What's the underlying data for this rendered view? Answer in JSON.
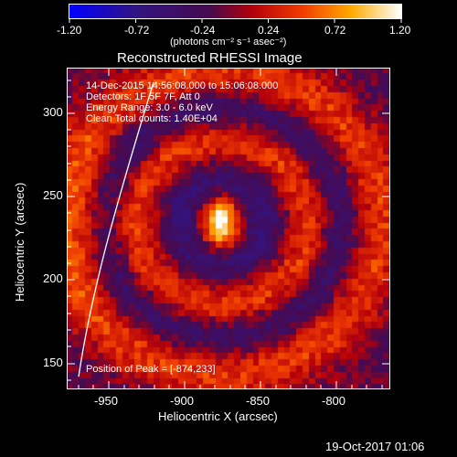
{
  "colorbar": {
    "ticks": [
      "-1.20",
      "-0.72",
      "-0.24",
      "0.24",
      "0.72",
      "1.20"
    ],
    "units_label": "(photons cm⁻² s⁻¹ asec⁻²)",
    "colors": [
      "#0000ff",
      "#3a1a6e",
      "#5a0a5a",
      "#c40000",
      "#ff7f00",
      "#ffffff"
    ]
  },
  "plot": {
    "title": "Reconstructed RHESSI Image",
    "xlabel": "Heliocentric X (arcsec)",
    "ylabel": "Heliocentric Y (arcsec)",
    "x_ticks": [
      "-950",
      "-900",
      "-850",
      "-800"
    ],
    "y_ticks": [
      "300",
      "250",
      "200",
      "150"
    ],
    "info": [
      "14-Dec-2015 14:56:08.000 to 15:06:08.000",
      "Detectors: 1F 5F 7F, Att 0",
      "Energy Range: 3.0 - 6.0 keV",
      "Clean     Total counts: 1.40E+04"
    ],
    "peak_text": "Position of Peak = [-874,233]"
  },
  "timestamp": "19-Oct-2017 01:06"
}
